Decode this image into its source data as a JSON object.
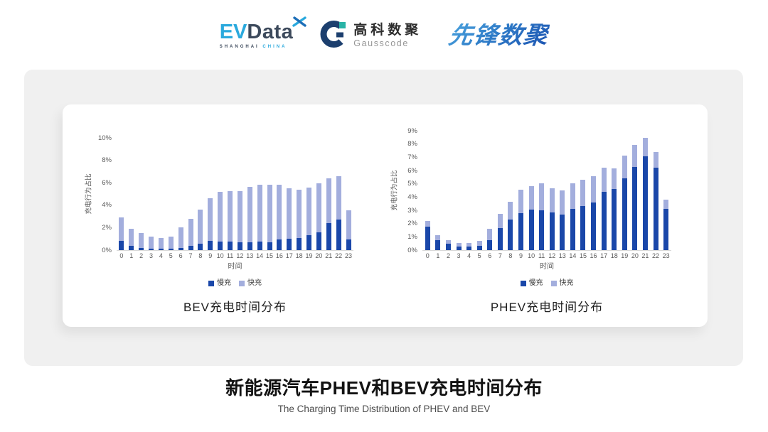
{
  "header": {
    "evdata": {
      "ev": "EV",
      "word": "Data",
      "sub_left": "SHANGHAI",
      "sub_right": "CHINA"
    },
    "gausscode": {
      "cn": "高科数聚",
      "en": "Gausscode"
    },
    "pioneer": {
      "text": "先锋数聚"
    }
  },
  "chart_data": [
    {
      "type": "bar",
      "stacked": true,
      "title": "BEV充电时间分布",
      "xlabel": "时间",
      "ylabel": "充电行为占比",
      "x": [
        "0",
        "1",
        "2",
        "3",
        "4",
        "5",
        "6",
        "7",
        "8",
        "9",
        "10",
        "11",
        "12",
        "13",
        "14",
        "15",
        "16",
        "17",
        "18",
        "19",
        "20",
        "21",
        "22",
        "23"
      ],
      "ylim": [
        0,
        10
      ],
      "yticks": [
        0,
        2,
        4,
        6,
        8,
        10
      ],
      "ytick_suffix": "%",
      "grid": false,
      "legend_position": "bottom",
      "series": [
        {
          "name": "慢充",
          "key": "slow",
          "color": "#1a47a9",
          "values": [
            0.8,
            0.4,
            0.2,
            0.15,
            0.1,
            0.15,
            0.2,
            0.4,
            0.55,
            0.8,
            0.75,
            0.75,
            0.7,
            0.7,
            0.75,
            0.7,
            0.95,
            1.0,
            1.1,
            1.35,
            1.6,
            2.4,
            2.7,
            0.95
          ]
        },
        {
          "name": "快充",
          "key": "fast",
          "color": "#a3aedd",
          "values": [
            2.1,
            1.5,
            1.3,
            1.05,
            1.0,
            1.05,
            1.8,
            2.4,
            3.05,
            3.8,
            4.45,
            4.5,
            4.55,
            4.95,
            5.1,
            5.15,
            4.9,
            4.5,
            4.25,
            4.25,
            4.35,
            4.0,
            3.9,
            2.6
          ]
        }
      ]
    },
    {
      "type": "bar",
      "stacked": true,
      "title": "PHEV充电时间分布",
      "xlabel": "时间",
      "ylabel": "充电行为占比",
      "x": [
        "0",
        "1",
        "2",
        "3",
        "4",
        "5",
        "6",
        "7",
        "8",
        "9",
        "10",
        "11",
        "12",
        "13",
        "14",
        "15",
        "16",
        "17",
        "18",
        "19",
        "20",
        "21",
        "22",
        "23"
      ],
      "ylim": [
        0,
        9
      ],
      "yticks": [
        0,
        1,
        2,
        3,
        4,
        5,
        6,
        7,
        8,
        9
      ],
      "ytick_suffix": "%",
      "grid": false,
      "legend_position": "bottom",
      "series": [
        {
          "name": "慢充",
          "key": "slow",
          "color": "#1a47a9",
          "values": [
            1.75,
            0.75,
            0.5,
            0.25,
            0.25,
            0.3,
            0.75,
            1.65,
            2.3,
            2.8,
            3.05,
            3.0,
            2.85,
            2.7,
            3.1,
            3.3,
            3.6,
            4.4,
            4.6,
            5.4,
            6.25,
            7.05,
            6.2,
            3.1
          ]
        },
        {
          "name": "快充",
          "key": "fast",
          "color": "#a3aedd",
          "values": [
            0.45,
            0.4,
            0.25,
            0.3,
            0.3,
            0.4,
            0.85,
            1.1,
            1.35,
            1.75,
            1.75,
            2.05,
            1.8,
            1.8,
            1.95,
            2.0,
            1.95,
            1.8,
            1.55,
            1.75,
            1.7,
            1.4,
            1.2,
            0.7
          ]
        }
      ]
    }
  ],
  "footer": {
    "title": "新能源汽车PHEV和BEV充电时间分布",
    "subtitle": "The Charging Time Distribution of PHEV and BEV"
  },
  "colors": {
    "slow_bar": "#1a47a9",
    "fast_bar": "#a3aedd",
    "panel_bg": "#f0f0f0",
    "axis_text": "#595959",
    "axis_line": "#d9d9d9"
  }
}
